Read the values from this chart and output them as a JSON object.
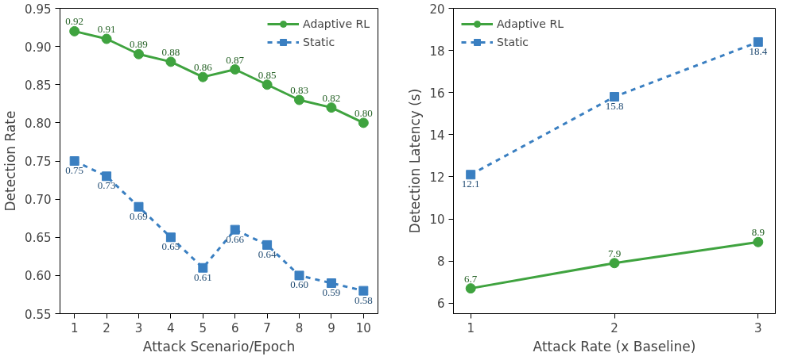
{
  "chart_data": [
    {
      "type": "line",
      "xlabel": "Attack Scenario/Epoch",
      "ylabel": "Detection Rate",
      "x": [
        1,
        2,
        3,
        4,
        5,
        6,
        7,
        8,
        9,
        10
      ],
      "xlim": [
        0.55,
        10.45
      ],
      "xticks": [
        1,
        2,
        3,
        4,
        5,
        6,
        7,
        8,
        9,
        10
      ],
      "ylim": [
        0.55,
        0.95
      ],
      "yticks": [
        {
          "value": 0.55,
          "label": "0.55"
        },
        {
          "value": 0.6,
          "label": "0.60"
        },
        {
          "value": 0.65,
          "label": "0.65"
        },
        {
          "value": 0.7,
          "label": "0.70"
        },
        {
          "value": 0.75,
          "label": "0.75"
        },
        {
          "value": 0.8,
          "label": "0.80"
        },
        {
          "value": 0.85,
          "label": "0.85"
        },
        {
          "value": 0.9,
          "label": "0.90"
        },
        {
          "value": 0.95,
          "label": "0.95"
        }
      ],
      "series": [
        {
          "name": "Adaptive RL",
          "color": "#3fa33f",
          "marker": "circle",
          "line_style": "solid",
          "values": [
            0.92,
            0.91,
            0.89,
            0.88,
            0.86,
            0.87,
            0.85,
            0.83,
            0.82,
            0.8
          ],
          "value_labels": [
            "0.92",
            "0.91",
            "0.89",
            "0.88",
            "0.86",
            "0.87",
            "0.85",
            "0.83",
            "0.82",
            "0.80"
          ]
        },
        {
          "name": "Static",
          "color": "#3a7fc1",
          "marker": "square",
          "line_style": "dashed",
          "values": [
            0.75,
            0.73,
            0.69,
            0.65,
            0.61,
            0.66,
            0.64,
            0.6,
            0.59,
            0.58
          ],
          "value_labels": [
            "0.75",
            "0.73",
            "0.69",
            "0.65",
            "0.61",
            "0.66",
            "0.64",
            "0.60",
            "0.59",
            "0.58"
          ]
        }
      ],
      "legend": "top right",
      "grid": false
    },
    {
      "type": "line",
      "xlabel": "Attack Rate (x Baseline)",
      "ylabel": "Detection Latency (s)",
      "x": [
        1,
        2,
        3
      ],
      "xlim": [
        0.88,
        3.12
      ],
      "xticks": [
        1,
        2,
        3
      ],
      "ylim": [
        5.5,
        20
      ],
      "yticks": [
        6,
        8,
        10,
        12,
        14,
        16,
        18,
        20
      ],
      "series": [
        {
          "name": "Adaptive RL",
          "color": "#3fa33f",
          "marker": "circle",
          "line_style": "solid",
          "values": [
            6.7,
            7.9,
            8.9
          ],
          "value_labels": [
            "6.7",
            "7.9",
            "8.9"
          ]
        },
        {
          "name": "Static",
          "color": "#3a7fc1",
          "marker": "square",
          "line_style": "dashed",
          "values": [
            12.1,
            15.8,
            18.4
          ],
          "value_labels": [
            "12.1",
            "15.8",
            "18.4"
          ]
        }
      ],
      "legend": "top left",
      "grid": false
    }
  ]
}
